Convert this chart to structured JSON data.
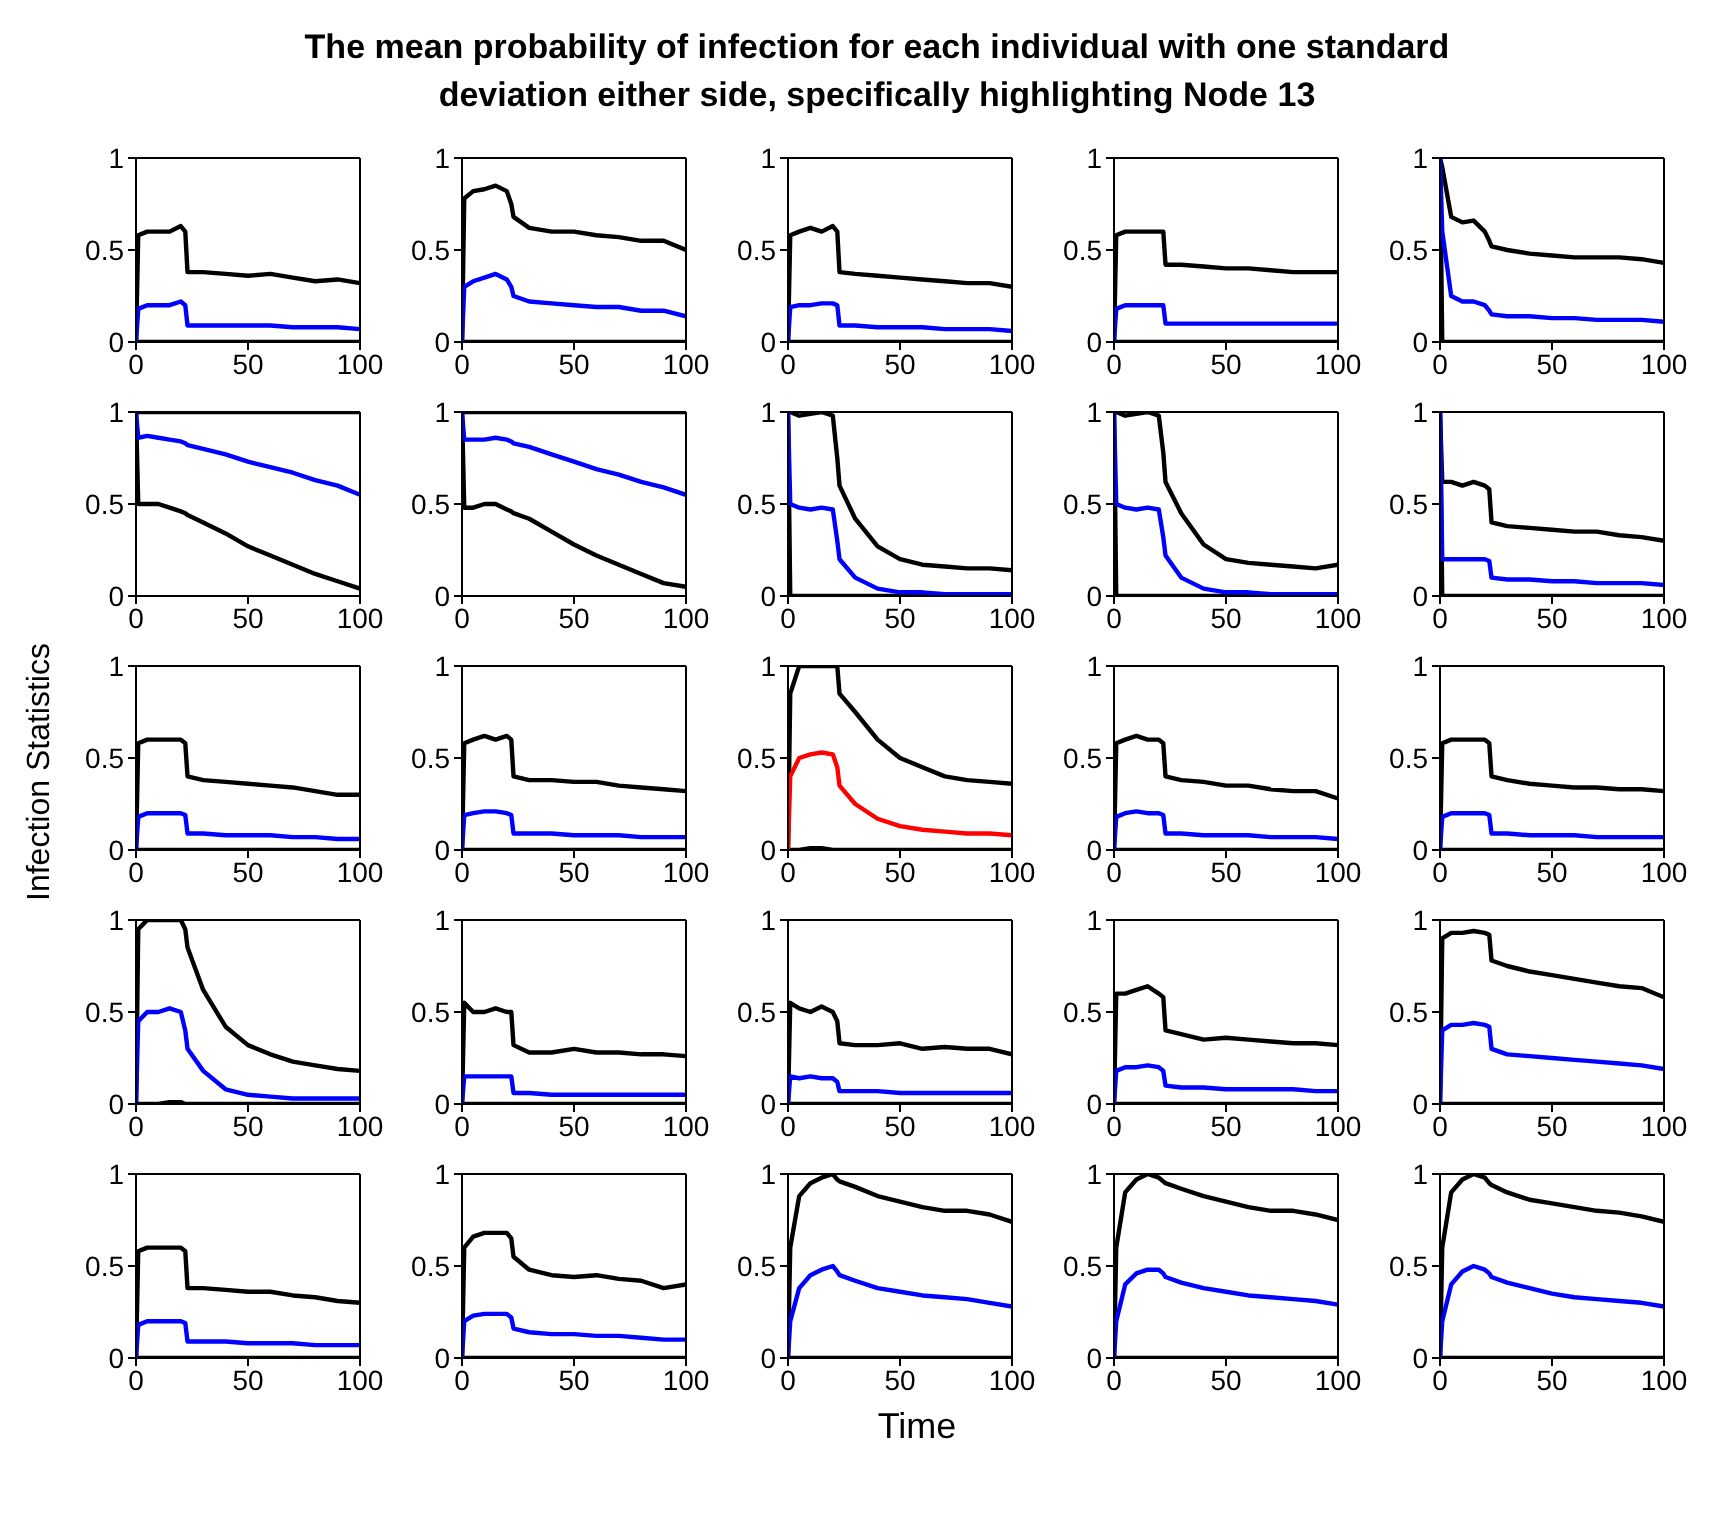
{
  "chart_data": [
    {
      "type": "line",
      "x": [
        0,
        1,
        5,
        10,
        15,
        20,
        22,
        23,
        30,
        40,
        50,
        60,
        70,
        80,
        90,
        100
      ],
      "xlim": [
        0,
        100
      ],
      "xticks": [
        0,
        50,
        100
      ],
      "ylim": [
        0,
        1
      ],
      "yticks": [
        0,
        0.5,
        1
      ],
      "series": [
        {
          "color": "#000000",
          "values": [
            0,
            0.58,
            0.6,
            0.6,
            0.6,
            0.63,
            0.6,
            0.38,
            0.38,
            0.37,
            0.36,
            0.37,
            0.35,
            0.33,
            0.34,
            0.32
          ]
        },
        {
          "color": "#000000",
          "values": [
            0,
            0,
            0,
            0,
            0,
            0,
            0,
            0,
            0,
            0,
            0,
            0,
            0,
            0,
            0,
            0
          ]
        },
        {
          "color": "#0000ff",
          "values": [
            0,
            0.18,
            0.2,
            0.2,
            0.2,
            0.22,
            0.2,
            0.09,
            0.09,
            0.09,
            0.09,
            0.09,
            0.08,
            0.08,
            0.08,
            0.07
          ]
        }
      ]
    },
    {
      "type": "line",
      "x": [
        0,
        1,
        5,
        10,
        15,
        20,
        22,
        23,
        30,
        40,
        50,
        60,
        70,
        80,
        90,
        100
      ],
      "xlim": [
        0,
        100
      ],
      "xticks": [
        0,
        50,
        100
      ],
      "ylim": [
        0,
        1
      ],
      "yticks": [
        0,
        0.5,
        1
      ],
      "series": [
        {
          "color": "#000000",
          "values": [
            0,
            0.78,
            0.82,
            0.83,
            0.85,
            0.82,
            0.75,
            0.68,
            0.62,
            0.6,
            0.6,
            0.58,
            0.57,
            0.55,
            0.55,
            0.5
          ]
        },
        {
          "color": "#000000",
          "values": [
            0,
            0,
            0,
            0,
            0,
            0,
            0,
            0,
            0,
            0,
            0,
            0,
            0,
            0,
            0,
            0
          ]
        },
        {
          "color": "#0000ff",
          "values": [
            0,
            0.3,
            0.33,
            0.35,
            0.37,
            0.34,
            0.3,
            0.25,
            0.22,
            0.21,
            0.2,
            0.19,
            0.19,
            0.17,
            0.17,
            0.14
          ]
        }
      ]
    },
    {
      "type": "line",
      "title": "The mean probability of infection for each individual with one standard deviation either side, specifically highlighting Node 13",
      "x": [
        0,
        1,
        5,
        10,
        15,
        20,
        22,
        23,
        30,
        40,
        50,
        60,
        70,
        80,
        90,
        100
      ],
      "xlim": [
        0,
        100
      ],
      "xticks": [
        0,
        50,
        100
      ],
      "ylim": [
        0,
        1
      ],
      "yticks": [
        0,
        0.5,
        1
      ],
      "series": [
        {
          "color": "#000000",
          "values": [
            0,
            0.58,
            0.6,
            0.62,
            0.6,
            0.63,
            0.6,
            0.38,
            0.37,
            0.36,
            0.35,
            0.34,
            0.33,
            0.32,
            0.32,
            0.3
          ]
        },
        {
          "color": "#000000",
          "values": [
            0,
            0,
            0,
            0,
            0,
            0,
            0,
            0,
            0,
            0,
            0,
            0,
            0,
            0,
            0,
            0
          ]
        },
        {
          "color": "#0000ff",
          "values": [
            0,
            0.19,
            0.2,
            0.2,
            0.21,
            0.21,
            0.2,
            0.09,
            0.09,
            0.08,
            0.08,
            0.08,
            0.07,
            0.07,
            0.07,
            0.06
          ]
        }
      ]
    },
    {
      "type": "line",
      "x": [
        0,
        1,
        5,
        10,
        15,
        20,
        22,
        23,
        30,
        40,
        50,
        60,
        70,
        80,
        90,
        100
      ],
      "xlim": [
        0,
        100
      ],
      "xticks": [
        0,
        50,
        100
      ],
      "ylim": [
        0,
        1
      ],
      "yticks": [
        0,
        0.5,
        1
      ],
      "series": [
        {
          "color": "#000000",
          "values": [
            0,
            0.58,
            0.6,
            0.6,
            0.6,
            0.6,
            0.6,
            0.42,
            0.42,
            0.41,
            0.4,
            0.4,
            0.39,
            0.38,
            0.38,
            0.38
          ]
        },
        {
          "color": "#000000",
          "values": [
            0,
            0,
            0,
            0,
            0,
            0,
            0,
            0,
            0,
            0,
            0,
            0,
            0,
            0,
            0,
            0
          ]
        },
        {
          "color": "#0000ff",
          "values": [
            0,
            0.18,
            0.2,
            0.2,
            0.2,
            0.2,
            0.2,
            0.1,
            0.1,
            0.1,
            0.1,
            0.1,
            0.1,
            0.1,
            0.1,
            0.1
          ]
        }
      ]
    },
    {
      "type": "line",
      "x": [
        0,
        1,
        5,
        10,
        15,
        20,
        22,
        23,
        30,
        40,
        50,
        60,
        70,
        80,
        90,
        100
      ],
      "xlim": [
        0,
        100
      ],
      "xticks": [
        0,
        50,
        100
      ],
      "ylim": [
        0,
        1
      ],
      "yticks": [
        0,
        0.5,
        1
      ],
      "series": [
        {
          "color": "#000000",
          "values": [
            1,
            0.95,
            0.68,
            0.65,
            0.66,
            0.6,
            0.55,
            0.52,
            0.5,
            0.48,
            0.47,
            0.46,
            0.46,
            0.46,
            0.45,
            0.43
          ]
        },
        {
          "color": "#000000",
          "values": [
            1,
            0,
            0,
            0,
            0,
            0,
            0,
            0,
            0,
            0,
            0,
            0,
            0,
            0,
            0,
            0
          ]
        },
        {
          "color": "#0000ff",
          "values": [
            1,
            0.6,
            0.25,
            0.22,
            0.22,
            0.2,
            0.17,
            0.15,
            0.14,
            0.14,
            0.13,
            0.13,
            0.12,
            0.12,
            0.12,
            0.11
          ]
        }
      ]
    },
    {
      "type": "line",
      "x": [
        0,
        1,
        5,
        10,
        15,
        20,
        22,
        23,
        30,
        40,
        50,
        60,
        70,
        80,
        90,
        100
      ],
      "xlim": [
        0,
        100
      ],
      "xticks": [
        0,
        50,
        100
      ],
      "ylim": [
        0,
        1
      ],
      "yticks": [
        0,
        0.5,
        1
      ],
      "series": [
        {
          "color": "#000000",
          "values": [
            1,
            1,
            1,
            1,
            1,
            1,
            1,
            1,
            1,
            1,
            1,
            1,
            1,
            1,
            1,
            1
          ]
        },
        {
          "color": "#000000",
          "values": [
            1,
            0.5,
            0.5,
            0.5,
            0.48,
            0.46,
            0.45,
            0.44,
            0.4,
            0.34,
            0.27,
            0.22,
            0.17,
            0.12,
            0.08,
            0.04
          ]
        },
        {
          "color": "#0000ff",
          "values": [
            1,
            0.86,
            0.87,
            0.86,
            0.85,
            0.84,
            0.83,
            0.82,
            0.8,
            0.77,
            0.73,
            0.7,
            0.67,
            0.63,
            0.6,
            0.55
          ]
        }
      ]
    },
    {
      "type": "line",
      "x": [
        0,
        1,
        5,
        10,
        15,
        20,
        22,
        23,
        30,
        40,
        50,
        60,
        70,
        80,
        90,
        100
      ],
      "xlim": [
        0,
        100
      ],
      "xticks": [
        0,
        50,
        100
      ],
      "ylim": [
        0,
        1
      ],
      "yticks": [
        0,
        0.5,
        1
      ],
      "series": [
        {
          "color": "#000000",
          "values": [
            1,
            1,
            1,
            1,
            1,
            1,
            1,
            1,
            1,
            1,
            1,
            1,
            1,
            1,
            1,
            1
          ]
        },
        {
          "color": "#000000",
          "values": [
            1,
            0.48,
            0.48,
            0.5,
            0.5,
            0.47,
            0.46,
            0.45,
            0.42,
            0.35,
            0.28,
            0.22,
            0.17,
            0.12,
            0.07,
            0.05
          ]
        },
        {
          "color": "#0000ff",
          "values": [
            1,
            0.85,
            0.85,
            0.85,
            0.86,
            0.85,
            0.84,
            0.83,
            0.81,
            0.77,
            0.73,
            0.69,
            0.66,
            0.62,
            0.59,
            0.55
          ]
        }
      ]
    },
    {
      "type": "line",
      "x": [
        0,
        1,
        5,
        10,
        15,
        20,
        22,
        23,
        30,
        40,
        50,
        60,
        70,
        80,
        90,
        100
      ],
      "xlim": [
        0,
        100
      ],
      "xticks": [
        0,
        50,
        100
      ],
      "ylim": [
        0,
        1
      ],
      "yticks": [
        0,
        0.5,
        1
      ],
      "series": [
        {
          "color": "#000000",
          "values": [
            1,
            1,
            0.98,
            0.99,
            1,
            0.98,
            0.75,
            0.6,
            0.42,
            0.27,
            0.2,
            0.17,
            0.16,
            0.15,
            0.15,
            0.14
          ]
        },
        {
          "color": "#000000",
          "values": [
            1,
            0,
            0,
            0,
            0,
            0,
            0,
            0,
            0,
            0,
            0,
            0,
            0,
            0,
            0,
            0
          ]
        },
        {
          "color": "#0000ff",
          "values": [
            1,
            0.5,
            0.48,
            0.47,
            0.48,
            0.47,
            0.3,
            0.2,
            0.1,
            0.04,
            0.02,
            0.02,
            0.01,
            0.01,
            0.01,
            0.01
          ]
        }
      ]
    },
    {
      "type": "line",
      "x": [
        0,
        1,
        5,
        10,
        15,
        20,
        22,
        23,
        30,
        40,
        50,
        60,
        70,
        80,
        90,
        100
      ],
      "xlim": [
        0,
        100
      ],
      "xticks": [
        0,
        50,
        100
      ],
      "ylim": [
        0,
        1
      ],
      "yticks": [
        0,
        0.5,
        1
      ],
      "series": [
        {
          "color": "#000000",
          "values": [
            1,
            1,
            0.98,
            0.99,
            1,
            0.98,
            0.78,
            0.62,
            0.45,
            0.28,
            0.2,
            0.18,
            0.17,
            0.16,
            0.15,
            0.17
          ]
        },
        {
          "color": "#000000",
          "values": [
            1,
            0,
            0,
            0,
            0,
            0,
            0,
            0,
            0,
            0,
            0,
            0,
            0,
            0,
            0,
            0
          ]
        },
        {
          "color": "#0000ff",
          "values": [
            1,
            0.5,
            0.48,
            0.47,
            0.48,
            0.47,
            0.32,
            0.22,
            0.1,
            0.04,
            0.02,
            0.02,
            0.01,
            0.01,
            0.01,
            0.01
          ]
        }
      ]
    },
    {
      "type": "line",
      "x": [
        0,
        1,
        5,
        10,
        15,
        20,
        22,
        23,
        30,
        40,
        50,
        60,
        70,
        80,
        90,
        100
      ],
      "xlim": [
        0,
        100
      ],
      "xticks": [
        0,
        50,
        100
      ],
      "ylim": [
        0,
        1
      ],
      "yticks": [
        0,
        0.5,
        1
      ],
      "series": [
        {
          "color": "#000000",
          "values": [
            1,
            0.62,
            0.62,
            0.6,
            0.62,
            0.6,
            0.58,
            0.4,
            0.38,
            0.37,
            0.36,
            0.35,
            0.35,
            0.33,
            0.32,
            0.3
          ]
        },
        {
          "color": "#000000",
          "values": [
            1,
            0,
            0,
            0,
            0,
            0,
            0,
            0,
            0,
            0,
            0,
            0,
            0,
            0,
            0,
            0
          ]
        },
        {
          "color": "#0000ff",
          "values": [
            1,
            0.2,
            0.2,
            0.2,
            0.2,
            0.2,
            0.19,
            0.1,
            0.09,
            0.09,
            0.08,
            0.08,
            0.07,
            0.07,
            0.07,
            0.06
          ]
        }
      ]
    },
    {
      "type": "line",
      "ylabel": "Infection Statistics",
      "x": [
        0,
        1,
        5,
        10,
        15,
        20,
        22,
        23,
        30,
        40,
        50,
        60,
        70,
        80,
        90,
        100
      ],
      "xlim": [
        0,
        100
      ],
      "xticks": [
        0,
        50,
        100
      ],
      "ylim": [
        0,
        1
      ],
      "yticks": [
        0,
        0.5,
        1
      ],
      "series": [
        {
          "color": "#000000",
          "values": [
            0,
            0.58,
            0.6,
            0.6,
            0.6,
            0.6,
            0.58,
            0.4,
            0.38,
            0.37,
            0.36,
            0.35,
            0.34,
            0.32,
            0.3,
            0.3
          ]
        },
        {
          "color": "#000000",
          "values": [
            0,
            0,
            0,
            0,
            0,
            0,
            0,
            0,
            0,
            0,
            0,
            0,
            0,
            0,
            0,
            0
          ]
        },
        {
          "color": "#0000ff",
          "values": [
            0,
            0.18,
            0.2,
            0.2,
            0.2,
            0.2,
            0.19,
            0.09,
            0.09,
            0.08,
            0.08,
            0.08,
            0.07,
            0.07,
            0.06,
            0.06
          ]
        }
      ]
    },
    {
      "type": "line",
      "x": [
        0,
        1,
        5,
        10,
        15,
        20,
        22,
        23,
        30,
        40,
        50,
        60,
        70,
        80,
        90,
        100
      ],
      "xlim": [
        0,
        100
      ],
      "xticks": [
        0,
        50,
        100
      ],
      "ylim": [
        0,
        1
      ],
      "yticks": [
        0,
        0.5,
        1
      ],
      "series": [
        {
          "color": "#000000",
          "values": [
            0,
            0.58,
            0.6,
            0.62,
            0.6,
            0.62,
            0.6,
            0.4,
            0.38,
            0.38,
            0.37,
            0.37,
            0.35,
            0.34,
            0.33,
            0.32
          ]
        },
        {
          "color": "#000000",
          "values": [
            0,
            0,
            0,
            0,
            0,
            0,
            0,
            0,
            0,
            0,
            0,
            0,
            0,
            0,
            0,
            0
          ]
        },
        {
          "color": "#0000ff",
          "values": [
            0,
            0.19,
            0.2,
            0.21,
            0.21,
            0.2,
            0.19,
            0.09,
            0.09,
            0.09,
            0.08,
            0.08,
            0.08,
            0.07,
            0.07,
            0.07
          ]
        }
      ]
    },
    {
      "type": "line",
      "x": [
        0,
        1,
        5,
        10,
        15,
        20,
        22,
        23,
        30,
        40,
        50,
        60,
        70,
        80,
        90,
        100
      ],
      "xlim": [
        0,
        100
      ],
      "xticks": [
        0,
        50,
        100
      ],
      "ylim": [
        0,
        1
      ],
      "yticks": [
        0,
        0.5,
        1
      ],
      "series": [
        {
          "color": "#000000",
          "values": [
            0,
            0.85,
            1,
            1,
            1,
            1,
            1,
            0.85,
            0.75,
            0.6,
            0.5,
            0.45,
            0.4,
            0.38,
            0.37,
            0.36
          ]
        },
        {
          "color": "#000000",
          "values": [
            0,
            0,
            0,
            0.01,
            0.01,
            0,
            0,
            0,
            0,
            0,
            0,
            0,
            0,
            0,
            0,
            0
          ]
        },
        {
          "color": "#ff0000",
          "values": [
            0,
            0.4,
            0.5,
            0.52,
            0.53,
            0.52,
            0.45,
            0.35,
            0.25,
            0.17,
            0.13,
            0.11,
            0.1,
            0.09,
            0.09,
            0.08
          ]
        }
      ]
    },
    {
      "type": "line",
      "x": [
        0,
        1,
        5,
        10,
        15,
        20,
        22,
        23,
        30,
        40,
        50,
        60,
        70,
        80,
        90,
        100
      ],
      "xlim": [
        0,
        100
      ],
      "xticks": [
        0,
        50,
        100
      ],
      "ylim": [
        0,
        1
      ],
      "yticks": [
        0,
        0.5,
        1
      ],
      "series": [
        {
          "color": "#000000",
          "values": [
            0,
            0.58,
            0.6,
            0.62,
            0.6,
            0.6,
            0.58,
            0.4,
            0.38,
            0.37,
            0.35,
            0.35,
            0.33,
            0.32,
            0.32,
            0.28
          ]
        },
        {
          "color": "#000000",
          "values": [
            0,
            0,
            0,
            0,
            0,
            0,
            0,
            0,
            0,
            0,
            0,
            0,
            0,
            0,
            0,
            0
          ]
        },
        {
          "color": "#0000ff",
          "values": [
            0,
            0.18,
            0.2,
            0.21,
            0.2,
            0.2,
            0.19,
            0.09,
            0.09,
            0.08,
            0.08,
            0.08,
            0.07,
            0.07,
            0.07,
            0.06
          ]
        }
      ]
    },
    {
      "type": "line",
      "x": [
        0,
        1,
        5,
        10,
        15,
        20,
        22,
        23,
        30,
        40,
        50,
        60,
        70,
        80,
        90,
        100
      ],
      "xlim": [
        0,
        100
      ],
      "xticks": [
        0,
        50,
        100
      ],
      "ylim": [
        0,
        1
      ],
      "yticks": [
        0,
        0.5,
        1
      ],
      "series": [
        {
          "color": "#000000",
          "values": [
            0,
            0.58,
            0.6,
            0.6,
            0.6,
            0.6,
            0.58,
            0.4,
            0.38,
            0.36,
            0.35,
            0.34,
            0.34,
            0.33,
            0.33,
            0.32
          ]
        },
        {
          "color": "#000000",
          "values": [
            0,
            0,
            0,
            0,
            0,
            0,
            0,
            0,
            0,
            0,
            0,
            0,
            0,
            0,
            0,
            0
          ]
        },
        {
          "color": "#0000ff",
          "values": [
            0,
            0.18,
            0.2,
            0.2,
            0.2,
            0.2,
            0.19,
            0.09,
            0.09,
            0.08,
            0.08,
            0.08,
            0.07,
            0.07,
            0.07,
            0.07
          ]
        }
      ]
    },
    {
      "type": "line",
      "x": [
        0,
        1,
        5,
        10,
        15,
        20,
        22,
        23,
        30,
        40,
        50,
        60,
        70,
        80,
        90,
        100
      ],
      "xlim": [
        0,
        100
      ],
      "xticks": [
        0,
        50,
        100
      ],
      "ylim": [
        0,
        1
      ],
      "yticks": [
        0,
        0.5,
        1
      ],
      "series": [
        {
          "color": "#000000",
          "values": [
            0,
            0.95,
            1,
            1,
            1,
            1,
            0.95,
            0.85,
            0.62,
            0.42,
            0.32,
            0.27,
            0.23,
            0.21,
            0.19,
            0.18
          ]
        },
        {
          "color": "#000000",
          "values": [
            0,
            0,
            0,
            0,
            0.01,
            0.01,
            0,
            0,
            0,
            0,
            0,
            0,
            0,
            0,
            0,
            0
          ]
        },
        {
          "color": "#0000ff",
          "values": [
            0,
            0.45,
            0.5,
            0.5,
            0.52,
            0.5,
            0.4,
            0.3,
            0.18,
            0.08,
            0.05,
            0.04,
            0.03,
            0.03,
            0.03,
            0.03
          ]
        }
      ]
    },
    {
      "type": "line",
      "x": [
        0,
        1,
        5,
        10,
        15,
        20,
        22,
        23,
        30,
        40,
        50,
        60,
        70,
        80,
        90,
        100
      ],
      "xlim": [
        0,
        100
      ],
      "xticks": [
        0,
        50,
        100
      ],
      "ylim": [
        0,
        1
      ],
      "yticks": [
        0,
        0.5,
        1
      ],
      "series": [
        {
          "color": "#000000",
          "values": [
            0,
            0.55,
            0.5,
            0.5,
            0.52,
            0.5,
            0.5,
            0.32,
            0.28,
            0.28,
            0.3,
            0.28,
            0.28,
            0.27,
            0.27,
            0.26
          ]
        },
        {
          "color": "#000000",
          "values": [
            0,
            0,
            0,
            0,
            0,
            0,
            0,
            0,
            0,
            0,
            0,
            0,
            0,
            0,
            0,
            0
          ]
        },
        {
          "color": "#0000ff",
          "values": [
            0,
            0.15,
            0.15,
            0.15,
            0.15,
            0.15,
            0.15,
            0.06,
            0.06,
            0.05,
            0.05,
            0.05,
            0.05,
            0.05,
            0.05,
            0.05
          ]
        }
      ]
    },
    {
      "type": "line",
      "x": [
        0,
        1,
        5,
        10,
        15,
        20,
        22,
        23,
        30,
        40,
        50,
        60,
        70,
        80,
        90,
        100
      ],
      "xlim": [
        0,
        100
      ],
      "xticks": [
        0,
        50,
        100
      ],
      "ylim": [
        0,
        1
      ],
      "yticks": [
        0,
        0.5,
        1
      ],
      "series": [
        {
          "color": "#000000",
          "values": [
            0,
            0.55,
            0.52,
            0.5,
            0.53,
            0.5,
            0.45,
            0.33,
            0.32,
            0.32,
            0.33,
            0.3,
            0.31,
            0.3,
            0.3,
            0.27
          ]
        },
        {
          "color": "#000000",
          "values": [
            0,
            0,
            0,
            0,
            0,
            0,
            0,
            0,
            0,
            0,
            0,
            0,
            0,
            0,
            0,
            0
          ]
        },
        {
          "color": "#0000ff",
          "values": [
            0,
            0.15,
            0.14,
            0.15,
            0.14,
            0.14,
            0.12,
            0.07,
            0.07,
            0.07,
            0.06,
            0.06,
            0.06,
            0.06,
            0.06,
            0.06
          ]
        }
      ]
    },
    {
      "type": "line",
      "x": [
        0,
        1,
        5,
        10,
        15,
        20,
        22,
        23,
        30,
        40,
        50,
        60,
        70,
        80,
        90,
        100
      ],
      "xlim": [
        0,
        100
      ],
      "xticks": [
        0,
        50,
        100
      ],
      "ylim": [
        0,
        1
      ],
      "yticks": [
        0,
        0.5,
        1
      ],
      "series": [
        {
          "color": "#000000",
          "values": [
            0,
            0.6,
            0.6,
            0.62,
            0.64,
            0.6,
            0.58,
            0.4,
            0.38,
            0.35,
            0.36,
            0.35,
            0.34,
            0.33,
            0.33,
            0.32
          ]
        },
        {
          "color": "#000000",
          "values": [
            0,
            0,
            0,
            0,
            0,
            0,
            0,
            0,
            0,
            0,
            0,
            0,
            0,
            0,
            0,
            0
          ]
        },
        {
          "color": "#0000ff",
          "values": [
            0,
            0.18,
            0.2,
            0.2,
            0.21,
            0.2,
            0.18,
            0.1,
            0.09,
            0.09,
            0.08,
            0.08,
            0.08,
            0.08,
            0.07,
            0.07
          ]
        }
      ]
    },
    {
      "type": "line",
      "x": [
        0,
        1,
        5,
        10,
        15,
        20,
        22,
        23,
        30,
        40,
        50,
        60,
        70,
        80,
        90,
        100
      ],
      "xlim": [
        0,
        100
      ],
      "xticks": [
        0,
        50,
        100
      ],
      "ylim": [
        0,
        1
      ],
      "yticks": [
        0,
        0.5,
        1
      ],
      "series": [
        {
          "color": "#000000",
          "values": [
            0,
            0.9,
            0.93,
            0.93,
            0.94,
            0.93,
            0.92,
            0.78,
            0.75,
            0.72,
            0.7,
            0.68,
            0.66,
            0.64,
            0.63,
            0.58
          ]
        },
        {
          "color": "#000000",
          "values": [
            0,
            0,
            0,
            0,
            0,
            0,
            0,
            0,
            0,
            0,
            0,
            0,
            0,
            0,
            0,
            0
          ]
        },
        {
          "color": "#0000ff",
          "values": [
            0,
            0.4,
            0.43,
            0.43,
            0.44,
            0.43,
            0.42,
            0.3,
            0.27,
            0.26,
            0.25,
            0.24,
            0.23,
            0.22,
            0.21,
            0.19
          ]
        }
      ]
    },
    {
      "type": "line",
      "x": [
        0,
        1,
        5,
        10,
        15,
        20,
        22,
        23,
        30,
        40,
        50,
        60,
        70,
        80,
        90,
        100
      ],
      "xlim": [
        0,
        100
      ],
      "xticks": [
        0,
        50,
        100
      ],
      "ylim": [
        0,
        1
      ],
      "yticks": [
        0,
        0.5,
        1
      ],
      "series": [
        {
          "color": "#000000",
          "values": [
            0,
            0.58,
            0.6,
            0.6,
            0.6,
            0.6,
            0.58,
            0.38,
            0.38,
            0.37,
            0.36,
            0.36,
            0.34,
            0.33,
            0.31,
            0.3
          ]
        },
        {
          "color": "#000000",
          "values": [
            0,
            0,
            0,
            0,
            0,
            0,
            0,
            0,
            0,
            0,
            0,
            0,
            0,
            0,
            0,
            0
          ]
        },
        {
          "color": "#0000ff",
          "values": [
            0,
            0.18,
            0.2,
            0.2,
            0.2,
            0.2,
            0.19,
            0.09,
            0.09,
            0.09,
            0.08,
            0.08,
            0.08,
            0.07,
            0.07,
            0.07
          ]
        }
      ]
    },
    {
      "type": "line",
      "x": [
        0,
        1,
        5,
        10,
        15,
        20,
        22,
        23,
        30,
        40,
        50,
        60,
        70,
        80,
        90,
        100
      ],
      "xlim": [
        0,
        100
      ],
      "xticks": [
        0,
        50,
        100
      ],
      "ylim": [
        0,
        1
      ],
      "yticks": [
        0,
        0.5,
        1
      ],
      "series": [
        {
          "color": "#000000",
          "values": [
            0,
            0.6,
            0.66,
            0.68,
            0.68,
            0.68,
            0.65,
            0.55,
            0.48,
            0.45,
            0.44,
            0.45,
            0.43,
            0.42,
            0.38,
            0.4
          ]
        },
        {
          "color": "#000000",
          "values": [
            0,
            0,
            0,
            0,
            0,
            0,
            0,
            0,
            0,
            0,
            0,
            0,
            0,
            0,
            0,
            0
          ]
        },
        {
          "color": "#0000ff",
          "values": [
            0,
            0.2,
            0.23,
            0.24,
            0.24,
            0.24,
            0.22,
            0.16,
            0.14,
            0.13,
            0.13,
            0.12,
            0.12,
            0.11,
            0.1,
            0.1
          ]
        }
      ]
    },
    {
      "type": "line",
      "xlabel": "Time",
      "x": [
        0,
        1,
        5,
        10,
        15,
        20,
        22,
        23,
        30,
        40,
        50,
        60,
        70,
        80,
        90,
        100
      ],
      "xlim": [
        0,
        100
      ],
      "xticks": [
        0,
        50,
        100
      ],
      "ylim": [
        0,
        1
      ],
      "yticks": [
        0,
        0.5,
        1
      ],
      "series": [
        {
          "color": "#000000",
          "values": [
            0,
            0.6,
            0.88,
            0.95,
            0.98,
            1,
            0.97,
            0.96,
            0.93,
            0.88,
            0.85,
            0.82,
            0.8,
            0.8,
            0.78,
            0.74
          ]
        },
        {
          "color": "#000000",
          "values": [
            0,
            0,
            0,
            0,
            0,
            0,
            0,
            0,
            0,
            0,
            0,
            0,
            0,
            0,
            0,
            0
          ]
        },
        {
          "color": "#0000ff",
          "values": [
            0,
            0.2,
            0.38,
            0.45,
            0.48,
            0.5,
            0.47,
            0.45,
            0.42,
            0.38,
            0.36,
            0.34,
            0.33,
            0.32,
            0.3,
            0.28
          ]
        }
      ]
    },
    {
      "type": "line",
      "x": [
        0,
        1,
        5,
        10,
        15,
        20,
        22,
        23,
        30,
        40,
        50,
        60,
        70,
        80,
        90,
        100
      ],
      "xlim": [
        0,
        100
      ],
      "xticks": [
        0,
        50,
        100
      ],
      "ylim": [
        0,
        1
      ],
      "yticks": [
        0,
        0.5,
        1
      ],
      "series": [
        {
          "color": "#000000",
          "values": [
            0,
            0.6,
            0.9,
            0.97,
            1,
            0.98,
            0.96,
            0.95,
            0.92,
            0.88,
            0.85,
            0.82,
            0.8,
            0.8,
            0.78,
            0.75
          ]
        },
        {
          "color": "#000000",
          "values": [
            0,
            0,
            0,
            0,
            0,
            0,
            0,
            0,
            0,
            0,
            0,
            0,
            0,
            0,
            0,
            0
          ]
        },
        {
          "color": "#0000ff",
          "values": [
            0,
            0.2,
            0.4,
            0.46,
            0.48,
            0.48,
            0.46,
            0.44,
            0.41,
            0.38,
            0.36,
            0.34,
            0.33,
            0.32,
            0.31,
            0.29
          ]
        }
      ]
    },
    {
      "type": "line",
      "x": [
        0,
        1,
        5,
        10,
        15,
        20,
        22,
        23,
        30,
        40,
        50,
        60,
        70,
        80,
        90,
        100
      ],
      "xlim": [
        0,
        100
      ],
      "xticks": [
        0,
        50,
        100
      ],
      "ylim": [
        0,
        1
      ],
      "yticks": [
        0,
        0.5,
        1
      ],
      "series": [
        {
          "color": "#000000",
          "values": [
            0,
            0.6,
            0.9,
            0.97,
            1,
            0.98,
            0.95,
            0.94,
            0.9,
            0.86,
            0.84,
            0.82,
            0.8,
            0.79,
            0.77,
            0.74
          ]
        },
        {
          "color": "#000000",
          "values": [
            0,
            0,
            0,
            0,
            0,
            0,
            0,
            0,
            0,
            0,
            0,
            0,
            0,
            0,
            0,
            0
          ]
        },
        {
          "color": "#0000ff",
          "values": [
            0,
            0.2,
            0.4,
            0.47,
            0.5,
            0.48,
            0.46,
            0.44,
            0.41,
            0.38,
            0.35,
            0.33,
            0.32,
            0.31,
            0.3,
            0.28
          ]
        }
      ]
    }
  ]
}
